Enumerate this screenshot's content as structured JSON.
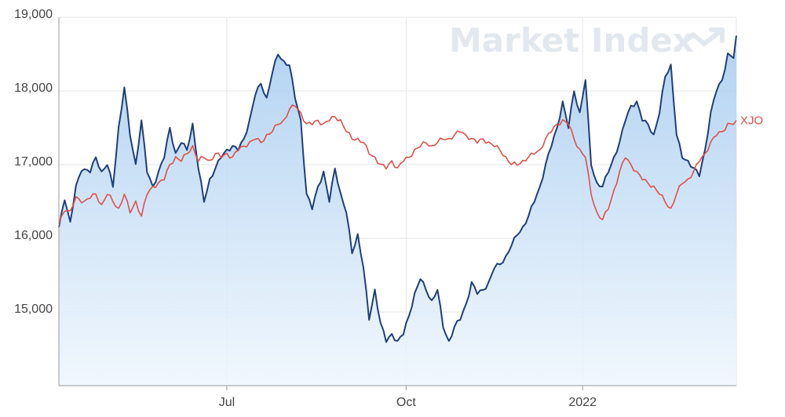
{
  "watermark": {
    "text": "Market Index",
    "icon": "trend-up-icon"
  },
  "chart_data": {
    "type": "line",
    "x_labels": [
      {
        "index": 59,
        "label": "Jul"
      },
      {
        "index": 122,
        "label": "Oct"
      },
      {
        "index": 184,
        "label": "2022"
      }
    ],
    "ylim": [
      14000,
      19000
    ],
    "y_ticks": [
      {
        "value": 15000,
        "label": "15,000"
      },
      {
        "value": 16000,
        "label": "16,000"
      },
      {
        "value": 17000,
        "label": "17,000"
      },
      {
        "value": 18000,
        "label": "18,000"
      },
      {
        "value": 19000,
        "label": "19,000"
      }
    ],
    "grid": true,
    "colors": {
      "primary": "#1f3f78",
      "xjo": "#e0504a",
      "fill_top": "#a9cdf0",
      "fill_bottom": "#eef6fd",
      "grid": "#e6e6e6"
    },
    "series": [
      {
        "key": "primary",
        "name": "",
        "color": "#1f3f78",
        "filled": true,
        "anchors": [
          [
            0,
            16150
          ],
          [
            2,
            16550
          ],
          [
            4,
            16200
          ],
          [
            6,
            16700
          ],
          [
            8,
            16950
          ],
          [
            11,
            16900
          ],
          [
            13,
            17100
          ],
          [
            15,
            16900
          ],
          [
            17,
            17000
          ],
          [
            19,
            16700
          ],
          [
            21,
            17500
          ],
          [
            23,
            18050
          ],
          [
            25,
            17400
          ],
          [
            27,
            17000
          ],
          [
            29,
            17600
          ],
          [
            31,
            16900
          ],
          [
            33,
            16700
          ],
          [
            35,
            16900
          ],
          [
            37,
            17100
          ],
          [
            39,
            17500
          ],
          [
            41,
            17150
          ],
          [
            43,
            17300
          ],
          [
            45,
            17200
          ],
          [
            47,
            17550
          ],
          [
            49,
            16950
          ],
          [
            51,
            16500
          ],
          [
            53,
            16800
          ],
          [
            55,
            16950
          ],
          [
            57,
            17100
          ],
          [
            59,
            17200
          ],
          [
            61,
            17250
          ],
          [
            63,
            17200
          ],
          [
            65,
            17350
          ],
          [
            67,
            17600
          ],
          [
            69,
            17950
          ],
          [
            71,
            18100
          ],
          [
            73,
            17900
          ],
          [
            75,
            18250
          ],
          [
            77,
            18500
          ],
          [
            79,
            18400
          ],
          [
            81,
            18350
          ],
          [
            83,
            17900
          ],
          [
            85,
            17600
          ],
          [
            87,
            16600
          ],
          [
            89,
            16400
          ],
          [
            91,
            16700
          ],
          [
            93,
            16900
          ],
          [
            95,
            16500
          ],
          [
            97,
            16950
          ],
          [
            99,
            16600
          ],
          [
            101,
            16350
          ],
          [
            103,
            15800
          ],
          [
            105,
            16050
          ],
          [
            107,
            15600
          ],
          [
            109,
            14900
          ],
          [
            111,
            15300
          ],
          [
            113,
            14850
          ],
          [
            115,
            14600
          ],
          [
            117,
            14700
          ],
          [
            119,
            14600
          ],
          [
            121,
            14700
          ],
          [
            123,
            14950
          ],
          [
            125,
            15250
          ],
          [
            127,
            15450
          ],
          [
            129,
            15300
          ],
          [
            131,
            15150
          ],
          [
            133,
            15300
          ],
          [
            135,
            14800
          ],
          [
            137,
            14600
          ],
          [
            139,
            14800
          ],
          [
            141,
            14900
          ],
          [
            143,
            15100
          ],
          [
            145,
            15400
          ],
          [
            147,
            15250
          ],
          [
            149,
            15300
          ],
          [
            151,
            15400
          ],
          [
            153,
            15600
          ],
          [
            155,
            15650
          ],
          [
            157,
            15750
          ],
          [
            159,
            15900
          ],
          [
            161,
            16050
          ],
          [
            163,
            16150
          ],
          [
            165,
            16300
          ],
          [
            167,
            16500
          ],
          [
            169,
            16700
          ],
          [
            171,
            17000
          ],
          [
            173,
            17250
          ],
          [
            175,
            17500
          ],
          [
            177,
            17850
          ],
          [
            179,
            17500
          ],
          [
            181,
            18000
          ],
          [
            183,
            17700
          ],
          [
            185,
            18150
          ],
          [
            187,
            17000
          ],
          [
            189,
            16750
          ],
          [
            191,
            16700
          ],
          [
            193,
            16900
          ],
          [
            195,
            17100
          ],
          [
            197,
            17300
          ],
          [
            199,
            17600
          ],
          [
            201,
            17800
          ],
          [
            203,
            17850
          ],
          [
            205,
            17600
          ],
          [
            207,
            17550
          ],
          [
            209,
            17400
          ],
          [
            211,
            17700
          ],
          [
            213,
            18200
          ],
          [
            215,
            18350
          ],
          [
            217,
            17400
          ],
          [
            219,
            17100
          ],
          [
            221,
            17050
          ],
          [
            223,
            16950
          ],
          [
            225,
            16850
          ],
          [
            227,
            17200
          ],
          [
            229,
            17700
          ],
          [
            231,
            18000
          ],
          [
            233,
            18150
          ],
          [
            235,
            18500
          ],
          [
            237,
            18450
          ],
          [
            238,
            18750
          ]
        ]
      },
      {
        "key": "xjo",
        "name": "XJO",
        "color": "#e0504a",
        "filled": false,
        "anchors": [
          [
            0,
            16200
          ],
          [
            2,
            16400
          ],
          [
            4,
            16350
          ],
          [
            6,
            16550
          ],
          [
            9,
            16500
          ],
          [
            11,
            16550
          ],
          [
            13,
            16600
          ],
          [
            15,
            16450
          ],
          [
            17,
            16600
          ],
          [
            19,
            16500
          ],
          [
            21,
            16400
          ],
          [
            23,
            16600
          ],
          [
            25,
            16350
          ],
          [
            27,
            16500
          ],
          [
            29,
            16300
          ],
          [
            31,
            16600
          ],
          [
            33,
            16700
          ],
          [
            35,
            16750
          ],
          [
            37,
            16800
          ],
          [
            39,
            17000
          ],
          [
            41,
            17100
          ],
          [
            43,
            17050
          ],
          [
            45,
            17150
          ],
          [
            47,
            17250
          ],
          [
            49,
            17050
          ],
          [
            51,
            17100
          ],
          [
            53,
            17050
          ],
          [
            55,
            17150
          ],
          [
            57,
            17100
          ],
          [
            59,
            17150
          ],
          [
            61,
            17100
          ],
          [
            63,
            17200
          ],
          [
            65,
            17250
          ],
          [
            67,
            17300
          ],
          [
            69,
            17350
          ],
          [
            71,
            17300
          ],
          [
            73,
            17400
          ],
          [
            75,
            17450
          ],
          [
            77,
            17550
          ],
          [
            79,
            17600
          ],
          [
            81,
            17750
          ],
          [
            83,
            17800
          ],
          [
            85,
            17700
          ],
          [
            87,
            17550
          ],
          [
            89,
            17550
          ],
          [
            91,
            17600
          ],
          [
            93,
            17550
          ],
          [
            95,
            17600
          ],
          [
            97,
            17650
          ],
          [
            99,
            17600
          ],
          [
            101,
            17450
          ],
          [
            103,
            17350
          ],
          [
            105,
            17350
          ],
          [
            107,
            17300
          ],
          [
            109,
            17150
          ],
          [
            111,
            17100
          ],
          [
            113,
            17000
          ],
          [
            115,
            16950
          ],
          [
            117,
            17050
          ],
          [
            119,
            16950
          ],
          [
            121,
            17050
          ],
          [
            123,
            17100
          ],
          [
            125,
            17200
          ],
          [
            127,
            17250
          ],
          [
            129,
            17300
          ],
          [
            131,
            17250
          ],
          [
            133,
            17300
          ],
          [
            135,
            17350
          ],
          [
            137,
            17350
          ],
          [
            139,
            17400
          ],
          [
            141,
            17450
          ],
          [
            143,
            17400
          ],
          [
            145,
            17350
          ],
          [
            147,
            17300
          ],
          [
            149,
            17350
          ],
          [
            151,
            17300
          ],
          [
            153,
            17250
          ],
          [
            155,
            17200
          ],
          [
            157,
            17100
          ],
          [
            159,
            17000
          ],
          [
            161,
            17000
          ],
          [
            163,
            17050
          ],
          [
            165,
            17100
          ],
          [
            167,
            17150
          ],
          [
            169,
            17200
          ],
          [
            171,
            17350
          ],
          [
            173,
            17450
          ],
          [
            175,
            17550
          ],
          [
            177,
            17600
          ],
          [
            179,
            17550
          ],
          [
            181,
            17350
          ],
          [
            183,
            17200
          ],
          [
            185,
            17100
          ],
          [
            187,
            16600
          ],
          [
            189,
            16350
          ],
          [
            191,
            16250
          ],
          [
            193,
            16400
          ],
          [
            195,
            16650
          ],
          [
            197,
            16900
          ],
          [
            199,
            17100
          ],
          [
            201,
            17000
          ],
          [
            203,
            16900
          ],
          [
            205,
            16800
          ],
          [
            207,
            16750
          ],
          [
            209,
            16700
          ],
          [
            211,
            16600
          ],
          [
            213,
            16500
          ],
          [
            215,
            16400
          ],
          [
            217,
            16600
          ],
          [
            219,
            16750
          ],
          [
            221,
            16800
          ],
          [
            223,
            16900
          ],
          [
            225,
            17050
          ],
          [
            227,
            17150
          ],
          [
            229,
            17300
          ],
          [
            231,
            17400
          ],
          [
            233,
            17450
          ],
          [
            235,
            17550
          ],
          [
            237,
            17550
          ],
          [
            238,
            17600
          ]
        ]
      }
    ]
  }
}
